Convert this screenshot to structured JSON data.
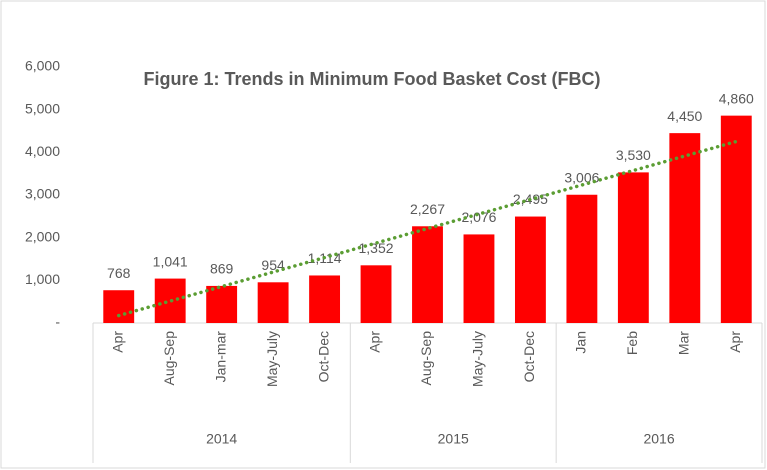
{
  "chart_data": {
    "type": "bar",
    "title": "Figure 1: Trends in Minimum Food Basket Cost (FBC)",
    "groups": [
      {
        "name": "2014",
        "categories": [
          "Apr",
          "Aug-Sep",
          "Jan-mar",
          "May-July",
          "Oct-Dec"
        ]
      },
      {
        "name": "2015",
        "categories": [
          "Apr",
          "Aug-Sep",
          "May-July",
          "Oct-Dec"
        ]
      },
      {
        "name": "2016",
        "categories": [
          "Jan",
          "Feb",
          "Mar",
          "Apr"
        ]
      }
    ],
    "values": [
      768,
      1041,
      869,
      954,
      1114,
      1352,
      2267,
      2076,
      2495,
      3006,
      3530,
      4450,
      4860
    ],
    "value_labels": [
      "768",
      "1,041",
      "869",
      "954",
      "1,114",
      "1,352",
      "2,267",
      "2,076",
      "2,495",
      "3,006",
      "3,530",
      "4,450",
      "4,860"
    ],
    "color": "#ff0000",
    "trendline": {
      "type": "linear",
      "color": "#5b9d33"
    },
    "ylim": [
      0,
      6000
    ],
    "yticks": [
      {
        "value": 0,
        "label": "-"
      },
      {
        "value": 1000,
        "label": "1,000"
      },
      {
        "value": 2000,
        "label": "2,000"
      },
      {
        "value": 3000,
        "label": "3,000"
      },
      {
        "value": 4000,
        "label": "4,000"
      },
      {
        "value": 5000,
        "label": "5,000"
      },
      {
        "value": 6000,
        "label": "6,000"
      }
    ],
    "grid": false
  }
}
